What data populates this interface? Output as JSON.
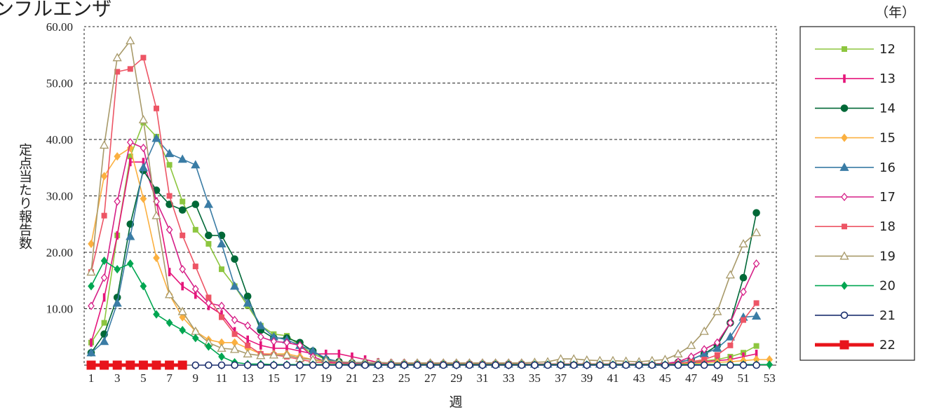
{
  "chart_data": {
    "type": "line",
    "title": "ンフルエンザ",
    "xlabel": "週",
    "ylabel": "定点当たり報告数",
    "legend_title": "（年）",
    "legend_position": "right",
    "ylim": [
      0,
      60
    ],
    "yticks": [
      "10.00",
      "20.00",
      "30.00",
      "40.00",
      "50.00",
      "60.00"
    ],
    "xlim": [
      1,
      53
    ],
    "xticks": [
      "1",
      "3",
      "5",
      "7",
      "9",
      "11",
      "13",
      "15",
      "17",
      "19",
      "21",
      "23",
      "25",
      "27",
      "29",
      "31",
      "33",
      "35",
      "37",
      "39",
      "41",
      "43",
      "45",
      "47",
      "49",
      "51",
      "53"
    ],
    "grid": "horizontal dashed",
    "x": [
      1,
      2,
      3,
      4,
      5,
      6,
      7,
      8,
      9,
      10,
      11,
      12,
      13,
      14,
      15,
      16,
      17,
      18,
      19,
      20,
      21,
      22,
      23,
      24,
      25,
      26,
      27,
      28,
      29,
      30,
      31,
      32,
      33,
      34,
      35,
      36,
      37,
      38,
      39,
      40,
      41,
      42,
      43,
      44,
      45,
      46,
      47,
      48,
      49,
      50,
      51,
      52,
      53
    ],
    "series": [
      {
        "name": "12",
        "color": "#8dc63f",
        "marker": "square",
        "values": [
          4,
          7.5,
          23,
          37,
          43,
          40.5,
          35.5,
          29,
          24,
          21.5,
          17,
          14,
          10.5,
          7,
          5.5,
          5.2,
          3.5,
          2,
          1,
          0.6,
          0.4,
          0.3,
          0.2,
          0.2,
          0.2,
          0.2,
          0.2,
          0.2,
          0.2,
          0.2,
          0.2,
          0.2,
          0.2,
          0.2,
          0.2,
          0.2,
          0.2,
          0.2,
          0.2,
          0.2,
          0.2,
          0.2,
          0.2,
          0.2,
          0.3,
          0.4,
          0.5,
          0.8,
          1,
          1.5,
          2.2,
          3.4,
          null
        ]
      },
      {
        "name": "13",
        "color": "#e5157a",
        "marker": "bar",
        "values": [
          4,
          12,
          23,
          36,
          36,
          29,
          16.5,
          14,
          12.5,
          10.5,
          9,
          6,
          4.5,
          3.5,
          3,
          3,
          2.5,
          2,
          2,
          2,
          1.5,
          1,
          0.5,
          0.3,
          0.3,
          0.2,
          0.2,
          0.2,
          0.2,
          0.2,
          0.2,
          0.2,
          0.2,
          0.2,
          0.2,
          0.2,
          0.2,
          0.2,
          0.2,
          0.2,
          0.2,
          0.2,
          0.2,
          0.2,
          0.2,
          0.3,
          0.4,
          0.6,
          0.8,
          1,
          1.5,
          2,
          null
        ]
      },
      {
        "name": "14",
        "color": "#006837",
        "marker": "circle",
        "values": [
          2.2,
          5.5,
          12,
          25,
          34.5,
          31,
          28.5,
          27.5,
          28.5,
          23,
          23,
          18.8,
          12.2,
          6.2,
          4.8,
          4.8,
          4,
          2.5,
          1,
          0.6,
          0.4,
          0.3,
          0.2,
          0.2,
          0.2,
          0.2,
          0.2,
          0.2,
          0.2,
          0.2,
          0.2,
          0.2,
          0.2,
          0.2,
          0.2,
          0.2,
          0.2,
          0.2,
          0.2,
          0.2,
          0.2,
          0.2,
          0.2,
          0.2,
          0.3,
          0.5,
          1,
          2,
          3.5,
          7.5,
          15.5,
          27,
          null
        ]
      },
      {
        "name": "15",
        "color": "#fbb040",
        "marker": "diamond",
        "values": [
          21.5,
          33.5,
          37,
          38.5,
          29.5,
          19,
          12.5,
          8.5,
          6,
          4.5,
          4,
          4,
          3,
          2,
          2,
          2,
          1.5,
          1,
          0.5,
          0.3,
          0.2,
          0.2,
          0.2,
          0.2,
          0.2,
          0.2,
          0.2,
          0.2,
          0.2,
          0.2,
          0.2,
          0.2,
          0.2,
          0.2,
          0.2,
          0.2,
          0.2,
          0.2,
          0.2,
          0.2,
          0.2,
          0.2,
          0.2,
          0.2,
          0.2,
          0.2,
          0.3,
          0.4,
          0.5,
          0.6,
          0.8,
          1,
          1
        ]
      },
      {
        "name": "16",
        "color": "#3a7ca5",
        "marker": "triangle",
        "values": [
          2.2,
          4.2,
          11,
          22.8,
          35,
          40.2,
          37.5,
          36.5,
          35.5,
          28.5,
          21.5,
          14,
          11,
          7,
          5,
          4.5,
          3.5,
          2.5,
          1.2,
          0.6,
          0.4,
          0.3,
          0.2,
          0.2,
          0.2,
          0.2,
          0.2,
          0.2,
          0.2,
          0.2,
          0.2,
          0.2,
          0.2,
          0.2,
          0.2,
          0.2,
          0.2,
          0.2,
          0.2,
          0.2,
          0.2,
          0.2,
          0.2,
          0.2,
          0.3,
          0.5,
          1,
          2,
          3,
          5,
          8.5,
          8.7,
          null
        ]
      },
      {
        "name": "17",
        "color": "#d61f87",
        "marker": "diamond-open",
        "values": [
          10.5,
          15.5,
          29,
          39.5,
          38.5,
          29,
          24,
          17,
          13.5,
          11,
          10.5,
          8,
          7,
          5,
          4.2,
          4,
          3.5,
          1.5,
          0.6,
          0.4,
          0.3,
          0.2,
          0.2,
          0.2,
          0.2,
          0.2,
          0.2,
          0.2,
          0.2,
          0.2,
          0.2,
          0.2,
          0.2,
          0.2,
          0.2,
          0.2,
          0.2,
          0.2,
          0.2,
          0.2,
          0.2,
          0.2,
          0.2,
          0.2,
          0.3,
          0.6,
          1.5,
          2.8,
          4,
          7.5,
          13,
          18,
          null
        ]
      },
      {
        "name": "18",
        "color": "#ed5565",
        "marker": "square",
        "values": [
          16.5,
          26.5,
          52,
          52.5,
          54.5,
          45.5,
          30,
          23,
          17.5,
          12,
          8.5,
          5.5,
          3.5,
          2,
          1.8,
          1.5,
          1,
          0.6,
          0.4,
          0.3,
          0.2,
          0.2,
          0.2,
          0.2,
          0.2,
          0.2,
          0.2,
          0.2,
          0.2,
          0.2,
          0.2,
          0.2,
          0.2,
          0.2,
          0.2,
          0.2,
          0.2,
          0.2,
          0.2,
          0.2,
          0.2,
          0.2,
          0.2,
          0.2,
          0.2,
          0.3,
          0.6,
          1,
          1.8,
          3.5,
          8,
          11,
          null
        ]
      },
      {
        "name": "19",
        "color": "#a89a6a",
        "marker": "triangle-open",
        "values": [
          16.5,
          39,
          54.5,
          57.5,
          43.5,
          26.5,
          12.5,
          9.5,
          6,
          4,
          3,
          2.8,
          2,
          1.7,
          1.8,
          1.8,
          1.2,
          1,
          0.8,
          0.6,
          0.5,
          0.5,
          0.5,
          0.4,
          0.4,
          0.4,
          0.4,
          0.4,
          0.4,
          0.4,
          0.4,
          0.4,
          0.4,
          0.4,
          0.5,
          0.6,
          1.1,
          1.1,
          0.9,
          0.8,
          0.8,
          0.7,
          0.6,
          0.8,
          1,
          2,
          3.5,
          6,
          9.5,
          16,
          21.5,
          23.5,
          null
        ]
      },
      {
        "name": "20",
        "color": "#00a651",
        "marker": "diamond",
        "values": [
          14,
          18.5,
          17,
          18,
          14,
          9,
          7.5,
          6.2,
          4.8,
          3.3,
          1.5,
          0.5,
          0.2,
          0.2,
          0.1,
          0.1,
          0.1,
          0.1,
          0.1,
          0.1,
          0.1,
          0.1,
          0.1,
          0.1,
          0.1,
          0.1,
          0.1,
          0.1,
          0.1,
          0.1,
          0.1,
          0.1,
          0.1,
          0.1,
          0.1,
          0.1,
          0.1,
          0.1,
          0.1,
          0.1,
          0.1,
          0.1,
          0.1,
          0.1,
          0.1,
          0.1,
          0.1,
          0.1,
          0.1,
          0.1,
          0.1,
          0.1,
          0.1
        ]
      },
      {
        "name": "21",
        "color": "#1b2f6e",
        "marker": "circle-open",
        "values": [
          null,
          null,
          null,
          null,
          null,
          null,
          null,
          null,
          0,
          0,
          0,
          0,
          0,
          0,
          0,
          0,
          0,
          0,
          0,
          0,
          0,
          0,
          0,
          0,
          0,
          0,
          0,
          0,
          0,
          0,
          0,
          0,
          0,
          0,
          0,
          0,
          0,
          0,
          0,
          0,
          0,
          0,
          0,
          0,
          0,
          0,
          0,
          0,
          0,
          0,
          0,
          0,
          null
        ]
      },
      {
        "name": "22",
        "color": "#e8141b",
        "marker": "square-bold",
        "values": [
          0,
          0,
          0,
          0,
          0,
          0,
          0,
          0,
          null,
          null,
          null,
          null,
          null,
          null,
          null,
          null,
          null,
          null,
          null,
          null,
          null,
          null,
          null,
          null,
          null,
          null,
          null,
          null,
          null,
          null,
          null,
          null,
          null,
          null,
          null,
          null,
          null,
          null,
          null,
          null,
          null,
          null,
          null,
          null,
          null,
          null,
          null,
          null,
          null,
          null,
          null,
          null,
          null
        ]
      }
    ]
  }
}
